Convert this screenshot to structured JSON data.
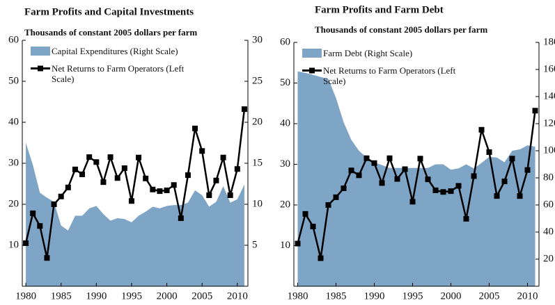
{
  "chart_data": [
    {
      "type": "combo",
      "title": "Farm Profits and Capital Investments",
      "subtitle": "Thousands of constant 2005 dollars per farm",
      "x": [
        1980,
        1981,
        1982,
        1983,
        1984,
        1985,
        1986,
        1987,
        1988,
        1989,
        1990,
        1991,
        1992,
        1993,
        1994,
        1995,
        1996,
        1997,
        1998,
        1999,
        2000,
        2001,
        2002,
        2003,
        2004,
        2005,
        2006,
        2007,
        2008,
        2009,
        2010,
        2011
      ],
      "series": [
        {
          "name": "Capital Expenditures (Right Scale)",
          "type": "area",
          "axis": "y2",
          "color": "#7ea5c5",
          "values": [
            17.5,
            14.8,
            11.4,
            10.8,
            10.3,
            7.4,
            6.8,
            8.6,
            8.6,
            9.5,
            9.8,
            8.8,
            8.0,
            8.3,
            8.2,
            7.8,
            8.6,
            9.1,
            9.7,
            9.5,
            9.8,
            9.9,
            9.9,
            10.2,
            11.7,
            11.1,
            9.7,
            10.3,
            12.2,
            10.2,
            10.6,
            12.4
          ]
        },
        {
          "name": "Net Returns to Farm Operators (Left Scale)",
          "type": "line",
          "color": "#000000",
          "values": [
            10.5,
            17.8,
            14.7,
            6.9,
            20,
            21.9,
            24.1,
            28.5,
            27.3,
            31.5,
            30.3,
            25.4,
            31.5,
            26.4,
            28.8,
            20.8,
            31.4,
            26.3,
            23.6,
            23.2,
            23.4,
            24.7,
            16.6,
            27.1,
            38.5,
            33,
            22.2,
            25.8,
            31.4,
            22.2,
            28.6,
            43.2
          ]
        }
      ],
      "xlim": [
        1979.5,
        2011.5
      ],
      "xticks": [
        1980,
        1985,
        1990,
        1995,
        2000,
        2005,
        2010
      ],
      "ylim": [
        0,
        60
      ],
      "yticks": [
        10,
        20,
        30,
        40,
        50,
        60
      ],
      "y2lim": [
        0,
        30
      ],
      "y2ticks": [
        5,
        10,
        15,
        20,
        25,
        30
      ],
      "legend": "upper left"
    },
    {
      "type": "combo",
      "title": "Farm Profits and Farm Debt",
      "subtitle": "Thousands of constant 2005 dollars per farm",
      "x": [
        1980,
        1981,
        1982,
        1983,
        1984,
        1985,
        1986,
        1987,
        1988,
        1989,
        1990,
        1991,
        1992,
        1993,
        1994,
        1995,
        1996,
        1997,
        1998,
        1999,
        2000,
        2001,
        2002,
        2003,
        2004,
        2005,
        2006,
        2007,
        2008,
        2009,
        2010,
        2011
      ],
      "series": [
        {
          "name": "Farm Debt (Right Scale)",
          "type": "area",
          "axis": "y2",
          "color": "#7ea5c5",
          "values": [
            158.6,
            157.5,
            156,
            154.5,
            153,
            139,
            121,
            108,
            100,
            95,
            91.4,
            89.4,
            87.3,
            87.3,
            87.3,
            87.3,
            87.3,
            87.3,
            90,
            90,
            86,
            87,
            90,
            87,
            91,
            95.5,
            95,
            91.5,
            100,
            101,
            104,
            103
          ]
        },
        {
          "name": "Net Returns to Farm Operators (Left Scale)",
          "type": "line",
          "color": "#000000",
          "values": [
            10.5,
            17.8,
            14.7,
            6.9,
            20,
            21.9,
            24.1,
            28.5,
            27.3,
            31.5,
            30.3,
            25.4,
            31.5,
            26.4,
            28.8,
            20.8,
            31.4,
            26.3,
            23.6,
            23.2,
            23.4,
            24.7,
            16.6,
            27.1,
            38.5,
            33,
            22.2,
            25.8,
            31.4,
            22.2,
            28.6,
            43.2
          ]
        }
      ],
      "xlim": [
        1979.5,
        2011.5
      ],
      "xticks": [
        1980,
        1985,
        1990,
        1995,
        2000,
        2005,
        2010
      ],
      "ylim": [
        0,
        60
      ],
      "yticks": [
        10,
        20,
        30,
        40,
        50,
        60
      ],
      "y2lim": [
        0,
        180
      ],
      "y2ticks": [
        20,
        40,
        60,
        80,
        100,
        120,
        140,
        160,
        180
      ],
      "legend": "upper left"
    }
  ]
}
